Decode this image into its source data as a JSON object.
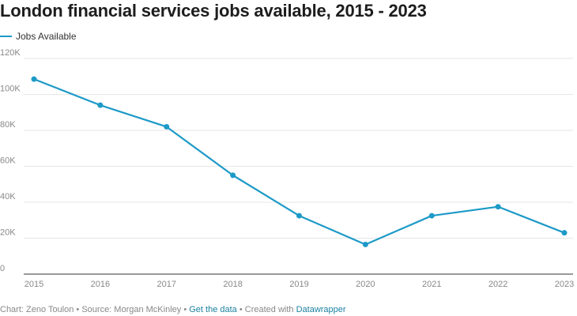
{
  "colors": {
    "series": "#1d9ac7",
    "grid": "#e6e6e6",
    "axis": "#333333",
    "tick_text": "#888888",
    "link": "#1d81a2"
  },
  "chart_data": {
    "type": "line",
    "title": "London financial services jobs available, 2015 - 2023",
    "xlabel": "",
    "ylabel": "",
    "ylim": [
      0,
      120000
    ],
    "grid": true,
    "legend_position": "top-left",
    "x": [
      "2015",
      "2016",
      "2017",
      "2018",
      "2019",
      "2020",
      "2021",
      "2022",
      "2023"
    ],
    "y_ticks": [
      0,
      20000,
      40000,
      60000,
      80000,
      100000,
      120000
    ],
    "y_tick_labels": [
      "0",
      "20K",
      "40K",
      "60K",
      "80K",
      "100K",
      "120K"
    ],
    "series": [
      {
        "name": "Jobs Available",
        "values": [
          108500,
          94000,
          82000,
          55000,
          32500,
          16500,
          32500,
          37500,
          23000
        ]
      }
    ]
  },
  "footer": {
    "credit": "Chart: Zeno Toulon",
    "sep1": " • ",
    "source": "Source: Morgan McKinley",
    "sep2": " • ",
    "get_data": "Get the data",
    "sep3": " • ",
    "created_with": "Created with ",
    "datawrapper": "Datawrapper"
  }
}
